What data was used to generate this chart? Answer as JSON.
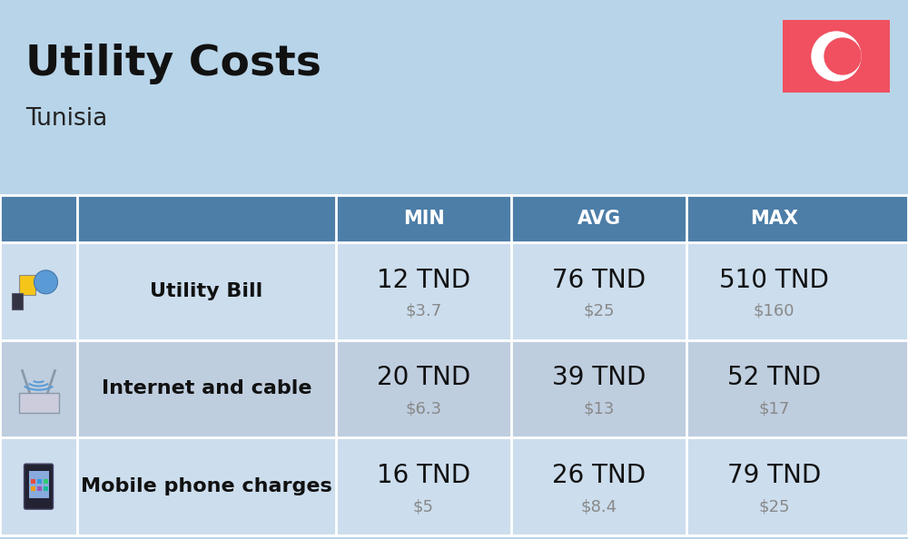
{
  "title": "Utility Costs",
  "subtitle": "Tunisia",
  "background_color": "#b8d4e8",
  "header_bg_color": "#4d7ea8",
  "header_text_color": "#ffffff",
  "row_bg_color_1": "#ccdded",
  "row_bg_color_2": "#bfcedf",
  "flag_bg_color": "#f05060",
  "columns": [
    "MIN",
    "AVG",
    "MAX"
  ],
  "rows": [
    {
      "label": "Utility Bill",
      "min_tnd": "12 TND",
      "min_usd": "$3.7",
      "avg_tnd": "76 TND",
      "avg_usd": "$25",
      "max_tnd": "510 TND",
      "max_usd": "$160"
    },
    {
      "label": "Internet and cable",
      "min_tnd": "20 TND",
      "min_usd": "$6.3",
      "avg_tnd": "39 TND",
      "avg_usd": "$13",
      "max_tnd": "52 TND",
      "max_usd": "$17"
    },
    {
      "label": "Mobile phone charges",
      "min_tnd": "16 TND",
      "min_usd": "$5",
      "avg_tnd": "26 TND",
      "avg_usd": "$8.4",
      "max_tnd": "79 TND",
      "max_usd": "$25"
    }
  ],
  "title_fontsize": 34,
  "subtitle_fontsize": 19,
  "header_fontsize": 15,
  "label_fontsize": 16,
  "value_fontsize": 20,
  "usd_fontsize": 13
}
